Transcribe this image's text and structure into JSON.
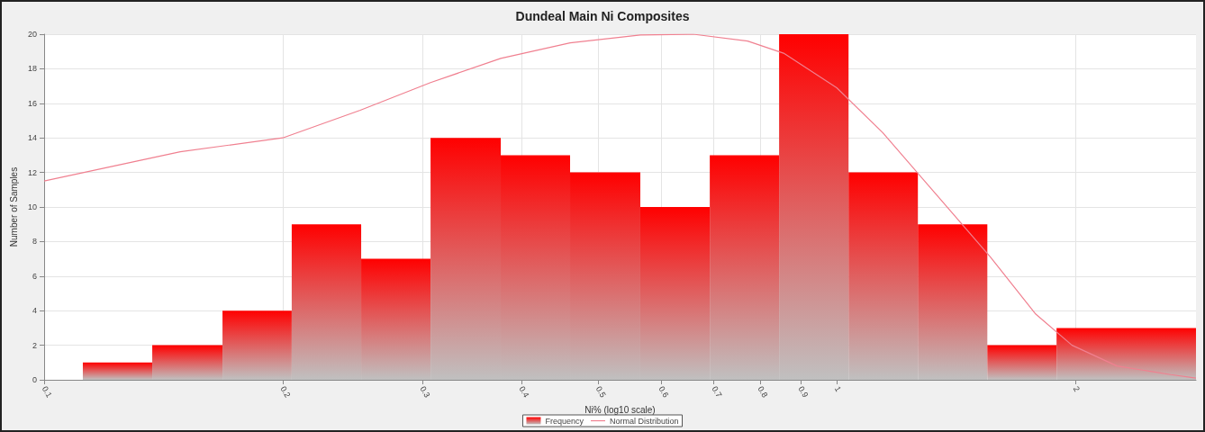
{
  "chart_data": {
    "type": "histogram",
    "title": "Dundeal Main Ni Composites",
    "xlabel": "Ni% (log10 scale)",
    "ylabel": "Number of Samples",
    "bins": [
      0.1119,
      0.1369,
      0.1679,
      0.2053,
      0.2512,
      0.3073,
      0.3768,
      0.4609,
      0.5652,
      0.6916,
      0.8459,
      1.035,
      1.266,
      1.549,
      1.894,
      2.84
    ],
    "series": [
      {
        "name": "Frequency",
        "color": "#ff0000",
        "values": [
          1,
          2,
          4,
          9,
          7,
          14,
          13,
          12,
          10,
          13,
          20,
          12,
          9,
          2,
          3
        ]
      },
      {
        "name": "Normal Distribution",
        "type": "line",
        "color": "#f08090",
        "x": [
          0.1,
          0.1485,
          0.2,
          0.2505,
          0.3073,
          0.3768,
          0.4609,
          0.5652,
          0.659,
          0.772,
          0.857,
          1.0,
          1.143,
          1.337,
          1.563,
          1.783,
          1.981,
          2.257,
          2.64,
          2.84
        ],
        "values": [
          11.5,
          13.2,
          14.0,
          15.6,
          17.2,
          18.6,
          19.5,
          19.95,
          20.0,
          19.6,
          18.9,
          16.9,
          14.3,
          10.7,
          7.1,
          3.8,
          2.0,
          0.8,
          0.3,
          0.1
        ]
      }
    ],
    "log": "x",
    "xlim": [
      0.1,
      2.84
    ],
    "xticks": [
      0.1,
      0.2,
      0.3,
      0.4,
      0.5,
      0.6,
      0.7,
      0.8,
      0.9,
      1,
      2
    ],
    "ylim": [
      0,
      20
    ],
    "yticks": [
      0,
      2,
      4,
      6,
      8,
      10,
      12,
      14,
      16,
      18,
      20
    ],
    "grid": true,
    "legend": "bottom",
    "marker": "none",
    "line_style": "solid"
  }
}
